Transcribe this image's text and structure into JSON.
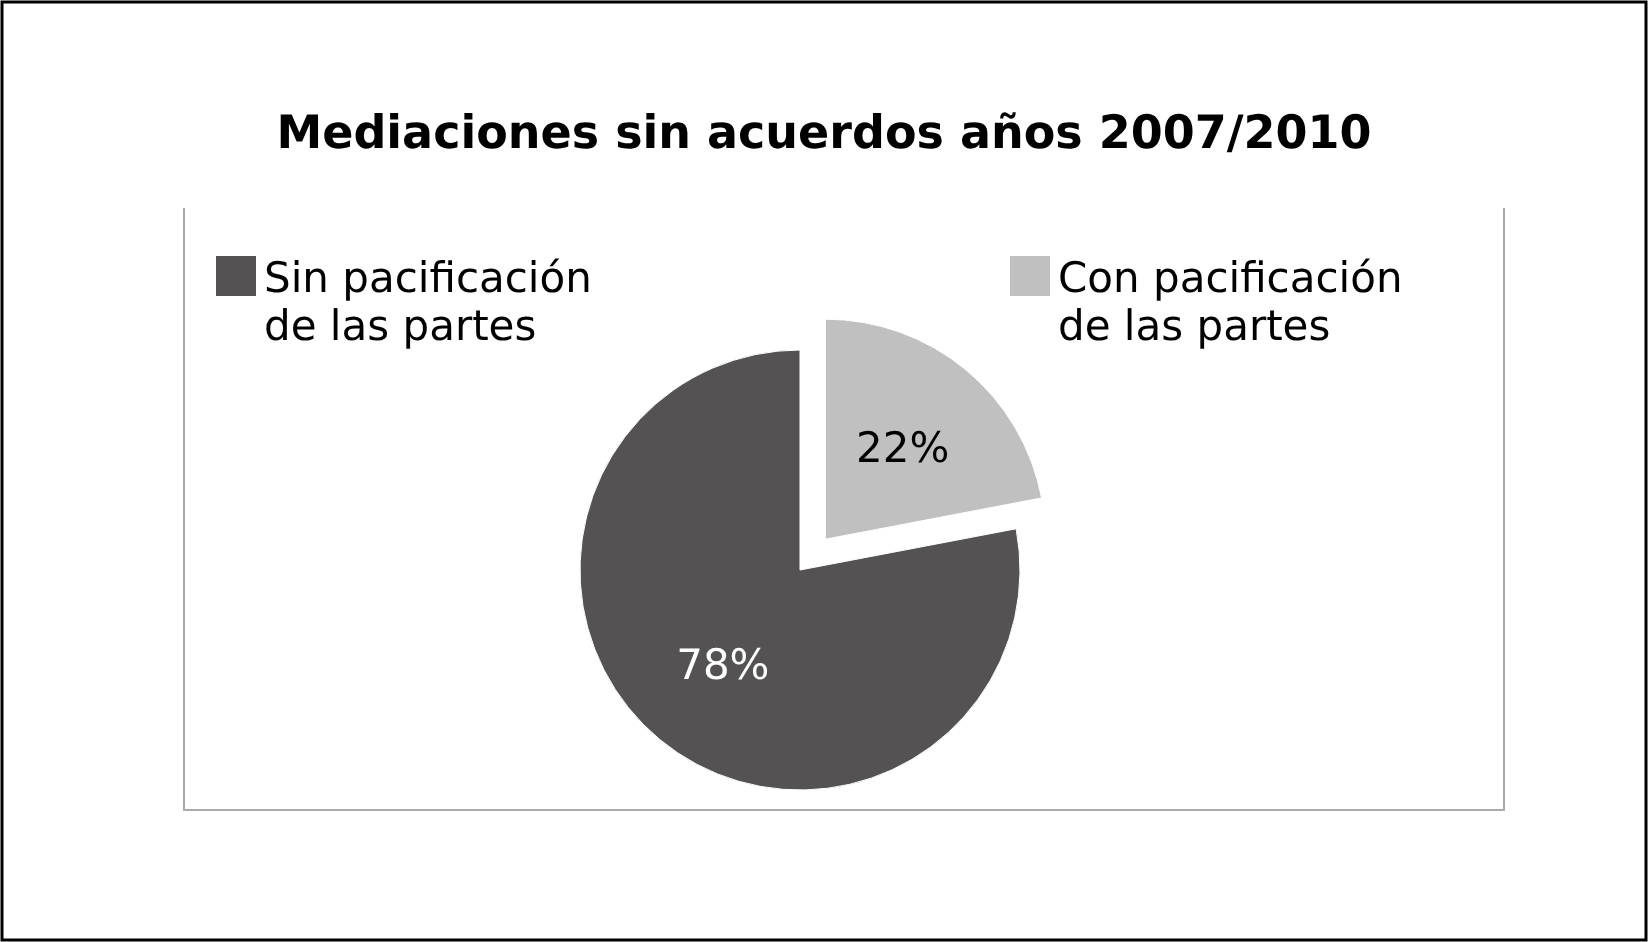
{
  "chart_data": {
    "type": "pie",
    "title": "Mediaciones sin acuerdos años 2007/2010",
    "categories": [
      "Sin pacificación de las partes",
      "Con pacificación de las partes"
    ],
    "values": [
      78,
      22
    ],
    "colors": [
      "#545252",
      "#c0c0c0"
    ],
    "value_labels": [
      "78%",
      "22%"
    ],
    "legend": "top"
  }
}
